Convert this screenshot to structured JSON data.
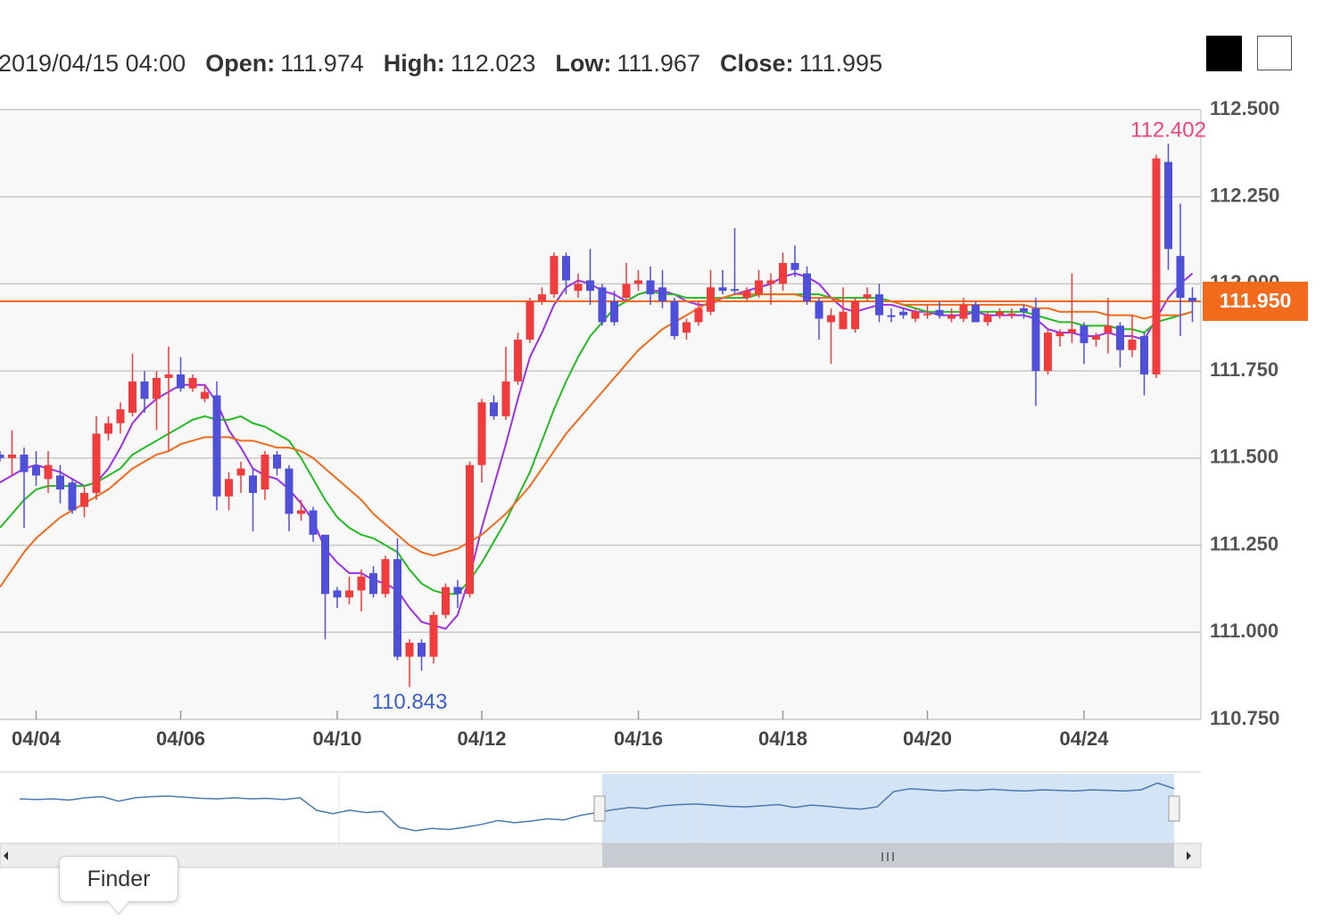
{
  "header": {
    "datetime": "2019/04/15 04:00",
    "fields": [
      {
        "label": "Open:",
        "value": 111.974
      },
      {
        "label": "High:",
        "value": 112.023
      },
      {
        "label": "Low:",
        "value": 111.967
      },
      {
        "label": "Close:",
        "value": 111.995
      }
    ]
  },
  "tooltip": "Finder",
  "chart_data": {
    "type": "candlestick",
    "categories": [
      null,
      null,
      null,
      "04/04",
      null,
      null,
      null,
      null,
      null,
      null,
      null,
      null,
      null,
      null,
      null,
      "04/06",
      null,
      null,
      null,
      null,
      null,
      null,
      null,
      null,
      null,
      null,
      null,
      null,
      "04/10",
      null,
      null,
      null,
      null,
      null,
      null,
      null,
      null,
      null,
      null,
      null,
      "04/12",
      null,
      null,
      null,
      null,
      null,
      null,
      null,
      null,
      null,
      null,
      null,
      null,
      "04/16",
      null,
      null,
      null,
      null,
      null,
      null,
      null,
      null,
      null,
      null,
      null,
      "04/18",
      null,
      null,
      null,
      null,
      null,
      null,
      null,
      null,
      null,
      null,
      null,
      "04/20",
      null,
      null,
      null,
      null,
      null,
      null,
      null,
      null,
      null,
      null,
      null,
      null,
      "04/24",
      null,
      null,
      null,
      null,
      null,
      null,
      null,
      null,
      null
    ],
    "candles": {
      "up_color": "#f03c3c",
      "down_color": "#4f4fd9",
      "open": [
        111.51,
        111.5,
        111.51,
        111.48,
        111.44,
        111.45,
        111.43,
        111.36,
        111.4,
        111.57,
        111.6,
        111.63,
        111.72,
        111.67,
        111.73,
        111.74,
        111.7,
        111.67,
        111.68,
        111.39,
        111.45,
        111.45,
        111.41,
        111.51,
        111.47,
        111.34,
        111.35,
        111.28,
        111.12,
        111.1,
        111.12,
        111.17,
        111.11,
        111.21,
        110.93,
        110.97,
        110.93,
        111.05,
        111.13,
        111.11,
        111.48,
        111.66,
        111.62,
        111.72,
        111.84,
        111.95,
        111.97,
        112.08,
        111.98,
        112.01,
        111.99,
        111.95,
        111.96,
        112.0,
        112.01,
        111.99,
        111.95,
        111.86,
        111.89,
        111.92,
        111.99,
        111.985,
        111.96,
        111.97,
        112.0,
        112.0,
        112.06,
        112.03,
        111.95,
        111.89,
        111.87,
        111.87,
        111.96,
        111.97,
        111.91,
        111.92,
        111.9,
        111.91,
        111.925,
        111.9,
        111.9,
        111.94,
        111.89,
        111.91,
        111.91,
        111.93,
        111.93,
        111.75,
        111.85,
        111.86,
        111.88,
        111.84,
        111.86,
        111.88,
        111.81,
        111.85,
        111.74,
        112.35,
        112.08,
        111.96
      ],
      "high": [
        111.52,
        111.58,
        111.53,
        111.52,
        111.52,
        111.48,
        111.44,
        111.42,
        111.62,
        111.62,
        111.66,
        111.8,
        111.75,
        111.75,
        111.82,
        111.79,
        111.74,
        111.71,
        111.72,
        111.46,
        111.49,
        111.47,
        111.52,
        111.52,
        111.48,
        111.38,
        111.36,
        111.28,
        111.13,
        111.16,
        111.18,
        111.19,
        111.22,
        111.27,
        110.98,
        110.98,
        111.06,
        111.14,
        111.15,
        111.49,
        111.67,
        111.68,
        111.82,
        111.86,
        111.96,
        111.99,
        112.09,
        112.09,
        112.03,
        112.1,
        112.0,
        111.98,
        112.06,
        112.04,
        112.05,
        112.04,
        111.96,
        111.9,
        111.95,
        112.04,
        112.04,
        112.16,
        111.99,
        112.04,
        112.03,
        112.09,
        112.11,
        112.05,
        111.96,
        111.93,
        111.99,
        111.96,
        111.99,
        112.0,
        111.93,
        111.93,
        111.93,
        111.94,
        111.95,
        111.93,
        111.96,
        111.95,
        111.92,
        111.93,
        111.93,
        111.94,
        111.96,
        111.87,
        111.87,
        112.03,
        111.89,
        111.86,
        111.96,
        111.89,
        111.91,
        111.86,
        112.37,
        112.402,
        112.23,
        111.99
      ],
      "low": [
        111.49,
        111.45,
        111.3,
        111.42,
        111.4,
        111.37,
        111.34,
        111.33,
        111.38,
        111.55,
        111.57,
        111.62,
        111.63,
        111.58,
        111.52,
        111.69,
        111.69,
        111.66,
        111.35,
        111.35,
        111.4,
        111.29,
        111.38,
        111.45,
        111.29,
        111.32,
        111.26,
        110.98,
        111.07,
        111.08,
        111.06,
        111.1,
        111.1,
        110.92,
        110.843,
        110.89,
        110.91,
        111.04,
        111.07,
        111.1,
        111.43,
        111.61,
        111.61,
        111.71,
        111.83,
        111.94,
        111.96,
        111.97,
        111.96,
        111.94,
        111.88,
        111.88,
        111.95,
        111.98,
        111.94,
        111.93,
        111.84,
        111.84,
        111.88,
        111.91,
        111.97,
        111.97,
        111.95,
        111.96,
        111.94,
        111.98,
        112.02,
        111.94,
        111.84,
        111.77,
        111.87,
        111.86,
        111.95,
        111.89,
        111.89,
        111.9,
        111.89,
        111.9,
        111.9,
        111.89,
        111.89,
        111.89,
        111.88,
        111.9,
        111.9,
        111.9,
        111.65,
        111.74,
        111.82,
        111.83,
        111.77,
        111.82,
        111.8,
        111.76,
        111.79,
        111.68,
        111.73,
        112.04,
        111.85,
        111.89
      ],
      "close": [
        111.5,
        111.51,
        111.46,
        111.45,
        111.48,
        111.41,
        111.35,
        111.4,
        111.57,
        111.6,
        111.64,
        111.72,
        111.67,
        111.73,
        111.74,
        111.7,
        111.73,
        111.69,
        111.39,
        111.44,
        111.47,
        111.4,
        111.51,
        111.47,
        111.34,
        111.35,
        111.28,
        111.11,
        111.1,
        111.12,
        111.16,
        111.11,
        111.21,
        110.93,
        110.97,
        110.93,
        111.05,
        111.13,
        111.11,
        111.48,
        111.66,
        111.62,
        111.72,
        111.84,
        111.95,
        111.97,
        112.08,
        112.01,
        112.0,
        111.98,
        111.89,
        111.89,
        112.0,
        112.01,
        111.97,
        111.95,
        111.85,
        111.89,
        111.93,
        111.99,
        111.98,
        111.98,
        111.98,
        112.01,
        112.01,
        112.06,
        112.04,
        111.95,
        111.9,
        111.91,
        111.92,
        111.95,
        111.97,
        111.91,
        111.905,
        111.91,
        111.92,
        111.915,
        111.91,
        111.91,
        111.94,
        111.89,
        111.91,
        111.92,
        111.915,
        111.92,
        111.75,
        111.86,
        111.86,
        111.87,
        111.83,
        111.85,
        111.88,
        111.81,
        111.84,
        111.74,
        112.36,
        112.1,
        111.96,
        111.95
      ]
    },
    "series": [
      {
        "color": "#9b30e8",
        "values": [
          111.43,
          111.45,
          111.47,
          111.48,
          111.47,
          111.46,
          111.44,
          111.42,
          111.43,
          111.47,
          111.53,
          111.6,
          111.64,
          111.67,
          111.69,
          111.71,
          111.71,
          111.71,
          111.66,
          111.58,
          111.53,
          111.47,
          111.45,
          111.44,
          111.41,
          111.37,
          111.32,
          111.24,
          111.2,
          111.17,
          111.17,
          111.15,
          111.14,
          111.12,
          111.07,
          111.03,
          111.02,
          111.01,
          111.05,
          111.16,
          111.3,
          111.42,
          111.54,
          111.67,
          111.79,
          111.86,
          111.94,
          111.99,
          112.01,
          112.0,
          111.98,
          111.97,
          111.95,
          111.97,
          111.98,
          111.98,
          111.97,
          111.95,
          111.94,
          111.94,
          111.96,
          111.97,
          111.98,
          111.99,
          112.0,
          112.02,
          112.03,
          112.02,
          112.0,
          111.96,
          111.93,
          111.92,
          111.93,
          111.94,
          111.94,
          111.93,
          111.92,
          111.92,
          111.91,
          111.91,
          111.91,
          111.92,
          111.91,
          111.91,
          111.91,
          111.91,
          111.9,
          111.87,
          111.86,
          111.86,
          111.85,
          111.85,
          111.86,
          111.85,
          111.85,
          111.84,
          111.9,
          111.96,
          112.0,
          112.03
        ]
      },
      {
        "color": "#22bb22",
        "values": [
          111.3,
          111.34,
          111.38,
          111.41,
          111.42,
          111.42,
          111.42,
          111.42,
          111.43,
          111.45,
          111.47,
          111.51,
          111.53,
          111.55,
          111.57,
          111.59,
          111.61,
          111.62,
          111.61,
          111.61,
          111.62,
          111.6,
          111.59,
          111.57,
          111.55,
          111.5,
          111.44,
          111.38,
          111.33,
          111.3,
          111.28,
          111.27,
          111.25,
          111.23,
          111.18,
          111.14,
          111.12,
          111.11,
          111.11,
          111.15,
          111.2,
          111.26,
          111.32,
          111.39,
          111.46,
          111.55,
          111.64,
          111.72,
          111.79,
          111.85,
          111.89,
          111.93,
          111.95,
          111.97,
          111.98,
          111.97,
          111.97,
          111.96,
          111.96,
          111.96,
          111.96,
          111.96,
          111.96,
          111.97,
          111.97,
          111.97,
          111.97,
          111.97,
          111.97,
          111.96,
          111.96,
          111.96,
          111.96,
          111.96,
          111.95,
          111.94,
          111.93,
          111.92,
          111.92,
          111.92,
          111.92,
          111.92,
          111.92,
          111.92,
          111.92,
          111.92,
          111.91,
          111.9,
          111.89,
          111.89,
          111.88,
          111.88,
          111.88,
          111.87,
          111.87,
          111.86,
          111.89,
          111.9,
          111.91,
          111.92
        ]
      },
      {
        "color": "#f26b1d",
        "values": [
          111.13,
          111.18,
          111.23,
          111.27,
          111.3,
          111.33,
          111.35,
          111.37,
          111.39,
          111.41,
          111.44,
          111.47,
          111.49,
          111.51,
          111.52,
          111.54,
          111.55,
          111.56,
          111.56,
          111.56,
          111.55,
          111.55,
          111.54,
          111.53,
          111.53,
          111.52,
          111.5,
          111.47,
          111.44,
          111.41,
          111.38,
          111.34,
          111.31,
          111.28,
          111.25,
          111.23,
          111.22,
          111.23,
          111.24,
          111.26,
          111.28,
          111.31,
          111.34,
          111.38,
          111.42,
          111.47,
          111.52,
          111.57,
          111.61,
          111.65,
          111.69,
          111.73,
          111.77,
          111.81,
          111.84,
          111.87,
          111.89,
          111.91,
          111.93,
          111.95,
          111.96,
          111.97,
          111.97,
          111.97,
          111.97,
          111.97,
          111.97,
          111.96,
          111.96,
          111.96,
          111.95,
          111.95,
          111.95,
          111.95,
          111.95,
          111.94,
          111.94,
          111.94,
          111.94,
          111.94,
          111.94,
          111.94,
          111.94,
          111.94,
          111.94,
          111.94,
          111.93,
          111.93,
          111.92,
          111.92,
          111.92,
          111.92,
          111.91,
          111.91,
          111.91,
          111.9,
          111.91,
          111.91,
          111.91,
          111.92
        ]
      }
    ],
    "price_line": {
      "value": 111.95,
      "label": "111.950",
      "color": "#f26b1d"
    },
    "annotations": [
      {
        "value": 112.402,
        "index": 97,
        "color": "#f0457a",
        "position": "above"
      },
      {
        "value": 110.843,
        "index": 34,
        "color": "#3a5fc8",
        "position": "below"
      }
    ],
    "ylim": [
      110.75,
      112.5
    ],
    "yticks": [
      {
        "value": 110.75,
        "label": "110.750"
      },
      {
        "value": 111,
        "label": "111.000"
      },
      {
        "value": 111.25,
        "label": "111.250"
      },
      {
        "value": 111.5,
        "label": "111.500"
      },
      {
        "value": 111.75,
        "label": "111.750"
      },
      {
        "value": 112,
        "label": "112.000"
      },
      {
        "value": 112.25,
        "label": "112.250"
      },
      {
        "value": 112.5,
        "label": "112.500"
      }
    ],
    "grid": true,
    "navigator": {
      "color": "#4a78b0",
      "selection_color": "#d4e4f7",
      "ylim": [
        110.9,
        112.0
      ],
      "values": [
        111.62,
        111.61,
        111.62,
        111.6,
        111.64,
        111.66,
        111.58,
        111.64,
        111.66,
        111.67,
        111.65,
        111.63,
        111.62,
        111.64,
        111.62,
        111.63,
        111.61,
        111.64,
        111.42,
        111.36,
        111.42,
        111.38,
        111.4,
        111.12,
        111.06,
        111.1,
        111.08,
        111.12,
        111.17,
        111.24,
        111.2,
        111.23,
        111.27,
        111.25,
        111.33,
        111.38,
        111.43,
        111.47,
        111.45,
        111.5,
        111.52,
        111.53,
        111.51,
        111.49,
        111.48,
        111.5,
        111.52,
        111.47,
        111.51,
        111.49,
        111.46,
        111.44,
        111.48,
        111.75,
        111.8,
        111.78,
        111.76,
        111.78,
        111.77,
        111.79,
        111.77,
        111.76,
        111.78,
        111.77,
        111.76,
        111.78,
        111.77,
        111.76,
        111.78,
        111.9,
        111.8
      ]
    }
  }
}
